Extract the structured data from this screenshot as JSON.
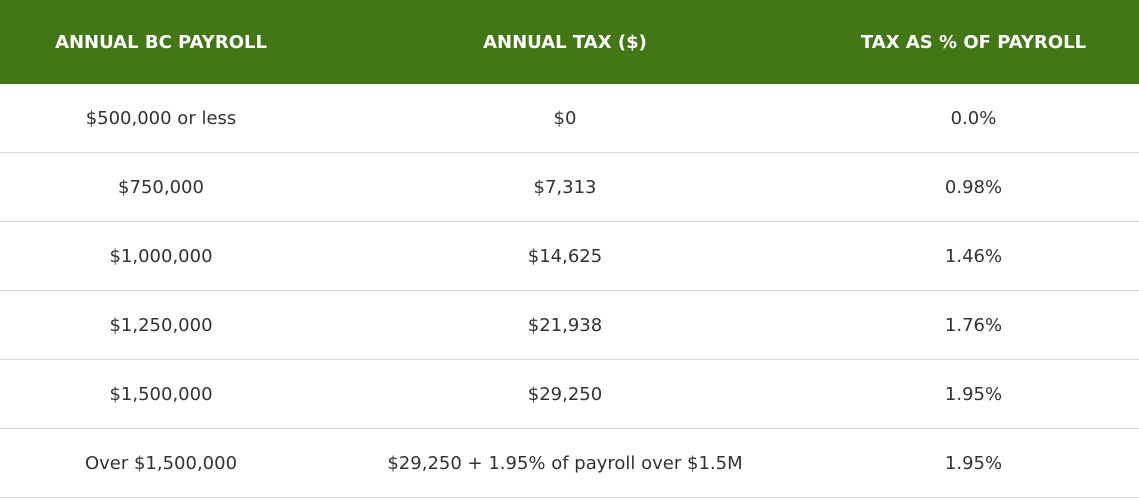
{
  "table": {
    "headers": [
      "ANNUAL BC PAYROLL",
      "ANNUAL TAX ($)",
      "TAX AS % OF PAYROLL"
    ],
    "rows": [
      [
        "$500,000 or less",
        "$0",
        "0.0%"
      ],
      [
        "$750,000",
        "$7,313",
        "0.98%"
      ],
      [
        "$1,000,000",
        "$14,625",
        "1.46%"
      ],
      [
        "$1,250,000",
        "$21,938",
        "1.76%"
      ],
      [
        "$1,500,000",
        "$29,250",
        "1.95%"
      ],
      [
        "Over $1,500,000",
        "$29,250 + 1.95% of payroll over $1.5M",
        "1.95%"
      ]
    ]
  }
}
